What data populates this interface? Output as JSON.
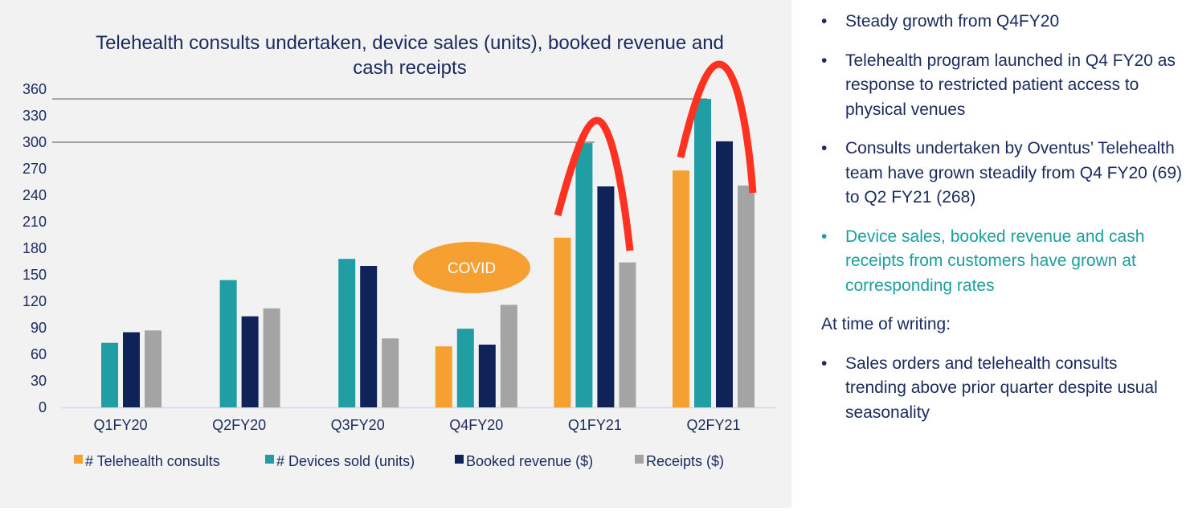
{
  "chart_data": {
    "type": "bar",
    "title": "Telehealth consults undertaken, device sales (units), booked revenue and cash receipts",
    "categories": [
      "Q1FY20",
      "Q2FY20",
      "Q3FY20",
      "Q4FY20",
      "Q1FY21",
      "Q2FY21"
    ],
    "series": [
      {
        "name": "# Telehealth consults",
        "color": "#f5a031",
        "values": [
          null,
          null,
          null,
          69,
          192,
          268
        ]
      },
      {
        "name": "# Devices sold (units)",
        "color": "#209ea3",
        "values": [
          73,
          144,
          168,
          89,
          299,
          349
        ]
      },
      {
        "name": "Booked revenue ($)",
        "color": "#0f2359",
        "values": [
          85,
          103,
          160,
          71,
          250,
          301
        ]
      },
      {
        "name": "Receipts ($)",
        "color": "#a3a4a3",
        "values": [
          87,
          112,
          78,
          116,
          164,
          251
        ]
      }
    ],
    "yticks": [
      0,
      30,
      60,
      90,
      120,
      150,
      180,
      210,
      240,
      270,
      300,
      330,
      360
    ],
    "ylim": [
      0,
      360
    ],
    "grid": false,
    "legend": "bottom",
    "reference_lines": [
      300,
      349
    ],
    "annotation": "COVID",
    "annotation_color": "#f5a031",
    "highlight_color": "#ff3120"
  },
  "bullets": [
    {
      "text": "Steady growth from Q4FY20"
    },
    {
      "text": "Telehealth program launched in Q4 FY20 as response to restricted patient access to physical venues"
    },
    {
      "text": "Consults undertaken by Oventus’ Telehealth team have grown steadily from Q4 FY20 (69) to Q2 FY21 (268)"
    },
    {
      "text": "Device sales, booked revenue and cash receipts from customers have grown at corresponding rates",
      "color": "#1d9e9e"
    }
  ],
  "subheading": "At time of writing:",
  "bullets2": [
    {
      "text": "Sales orders and telehealth consults trending above prior quarter despite usual seasonality"
    }
  ],
  "bullet_glyph": "•"
}
